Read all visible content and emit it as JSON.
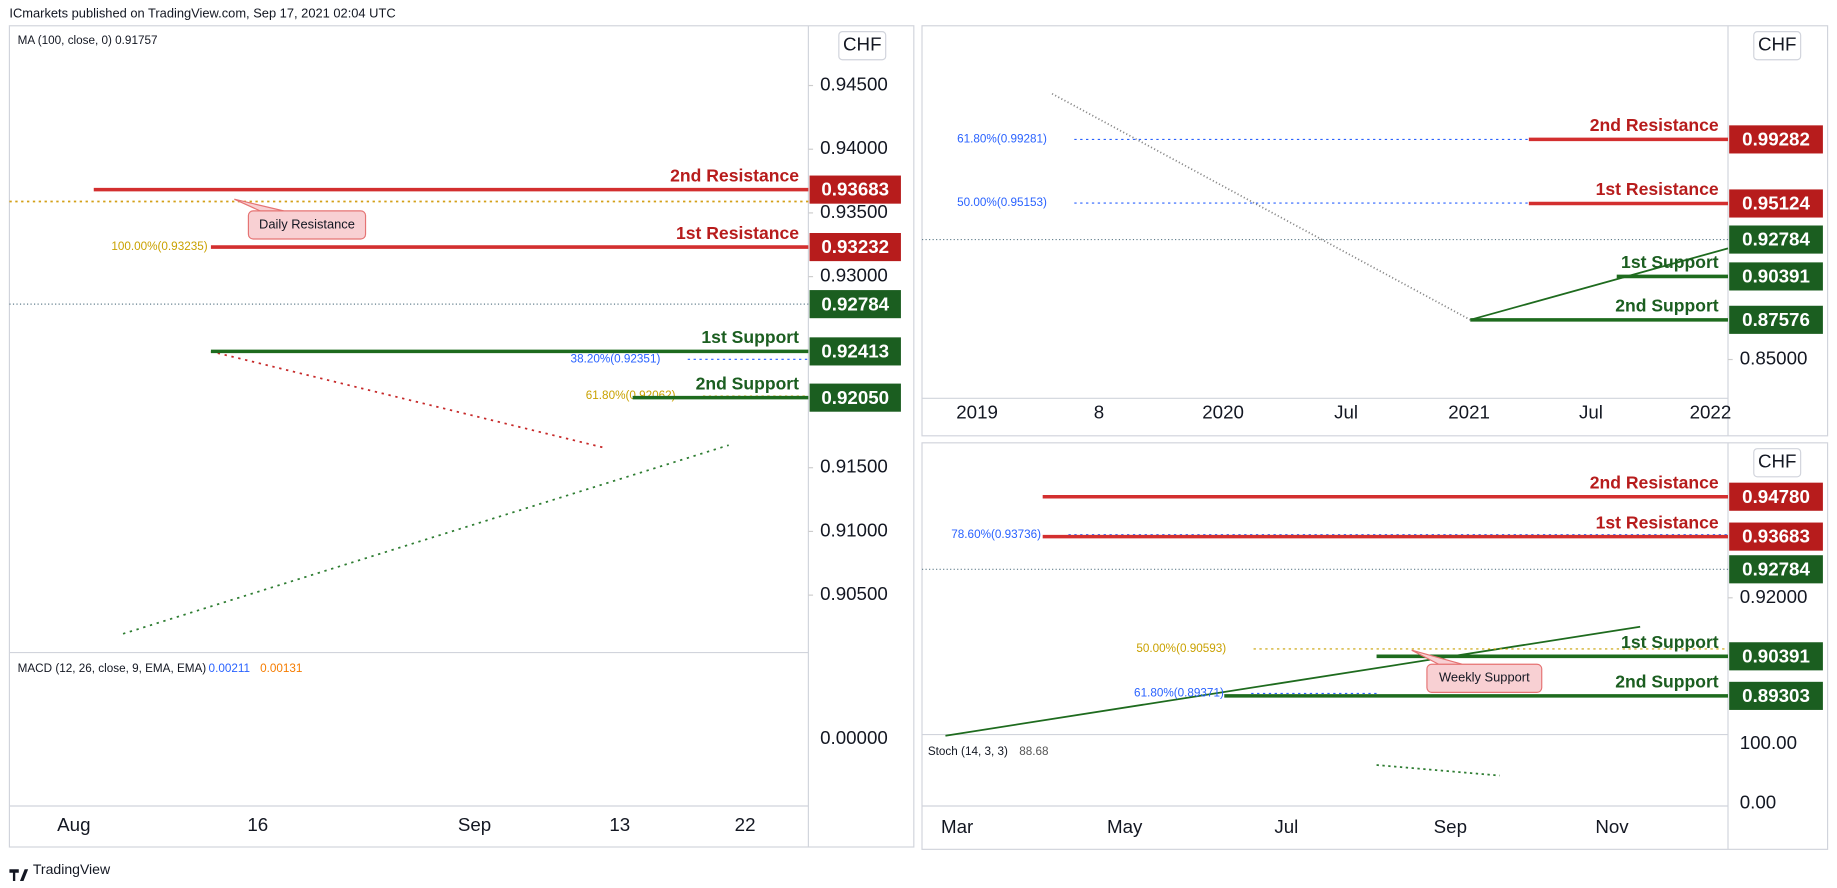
{
  "header": "ICmarkets published on TradingView.com, Sep 17, 2021 02:04 UTC",
  "footer": "TradingView",
  "panels": [
    {
      "currency": "CHF",
      "indicator": "MA (100, close, 0)  0.91757",
      "price_ticks": [
        {
          "value": 0.945,
          "label": "0.94500"
        },
        {
          "value": 0.94,
          "label": "0.94000"
        },
        {
          "value": 0.935,
          "label": "0.93500"
        },
        {
          "value": 0.93,
          "label": "0.93000"
        },
        {
          "value": 0.915,
          "label": "0.91500"
        },
        {
          "value": 0.91,
          "label": "0.91000"
        },
        {
          "value": 0.905,
          "label": "0.90500"
        }
      ],
      "levels": [
        {
          "name": "2nd Resistance",
          "kind": "resistance",
          "value": 0.93683,
          "label": "0.93683"
        },
        {
          "name": "1st Resistance",
          "kind": "resistance",
          "value": 0.93232,
          "label": "0.93232"
        },
        {
          "name": "1st Support",
          "kind": "support",
          "value": 0.92413,
          "label": "0.92413"
        },
        {
          "name": "2nd Support",
          "kind": "support",
          "value": 0.9205,
          "label": "0.92050"
        }
      ],
      "current": {
        "value": 0.92784,
        "label": "0.92784"
      },
      "fibs": [
        {
          "label": "100.00%(0.93235)",
          "value": 0.93235,
          "color": "#c9a100"
        },
        {
          "label": "38.20%(0.92351)",
          "value": 0.92351,
          "color": "#2962ff"
        },
        {
          "label": "61.80%(0.92062)",
          "value": 0.92062,
          "color": "#c9a100"
        }
      ],
      "callout": "Daily Resistance",
      "time_ticks": [
        "Aug",
        "16",
        "Sep",
        "13",
        "22"
      ],
      "sub": {
        "indicator": "MACD (12, 26, close, 9, EMA, EMA)",
        "readings": [
          {
            "text": "0.00211",
            "color": "#2962ff"
          },
          {
            "text": "0.00131",
            "color": "#f57c00"
          }
        ],
        "ticks": [
          "0.00000"
        ]
      }
    },
    {
      "currency": "CHF",
      "indicator": null,
      "price_ticks": [
        {
          "value": 0.85,
          "label": "0.85000"
        }
      ],
      "levels": [
        {
          "name": "2nd Resistance",
          "kind": "resistance",
          "value": 0.99282,
          "label": "0.99282"
        },
        {
          "name": "1st Resistance",
          "kind": "resistance",
          "value": 0.95124,
          "label": "0.95124"
        },
        {
          "name": "1st Support",
          "kind": "support",
          "value": 0.90391,
          "label": "0.90391"
        },
        {
          "name": "2nd Support",
          "kind": "support",
          "value": 0.87576,
          "label": "0.87576"
        }
      ],
      "current": {
        "value": 0.92784,
        "label": "0.92784"
      },
      "fibs": [
        {
          "label": "61.80%(0.99281)",
          "value": 0.99281,
          "color": "#2962ff"
        },
        {
          "label": "50.00%(0.95153)",
          "value": 0.95153,
          "color": "#2962ff"
        }
      ],
      "callout": null,
      "time_ticks": [
        "2019",
        "8",
        "2020",
        "Jul",
        "2021",
        "Jul",
        "2022"
      ],
      "sub": null
    },
    {
      "currency": "CHF",
      "indicator": null,
      "price_ticks": [
        {
          "value": 0.92,
          "label": "0.92000"
        }
      ],
      "levels": [
        {
          "name": "2nd Resistance",
          "kind": "resistance",
          "value": 0.9478,
          "label": "0.94780"
        },
        {
          "name": "1st Resistance",
          "kind": "resistance",
          "value": 0.93683,
          "label": "0.93683"
        },
        {
          "name": "1st Support",
          "kind": "support",
          "value": 0.90391,
          "label": "0.90391"
        },
        {
          "name": "2nd Support",
          "kind": "support",
          "value": 0.89303,
          "label": "0.89303"
        }
      ],
      "current": {
        "value": 0.92784,
        "label": "0.92784"
      },
      "fibs": [
        {
          "label": "78.60%(0.93736)",
          "value": 0.93736,
          "color": "#2962ff"
        },
        {
          "label": "50.00%(0.90593)",
          "value": 0.90593,
          "color": "#c9a100"
        },
        {
          "label": "61.80%(0.89371)",
          "value": 0.89371,
          "color": "#2962ff"
        }
      ],
      "callout": "Weekly Support",
      "time_ticks": [
        "Mar",
        "May",
        "Jul",
        "Sep",
        "Nov"
      ],
      "sub": {
        "indicator": "Stoch (14, 3, 3)",
        "readings": [
          {
            "text": "88.68",
            "color": "#555"
          }
        ],
        "ticks": [
          "100.00",
          "0.00"
        ]
      }
    }
  ]
}
